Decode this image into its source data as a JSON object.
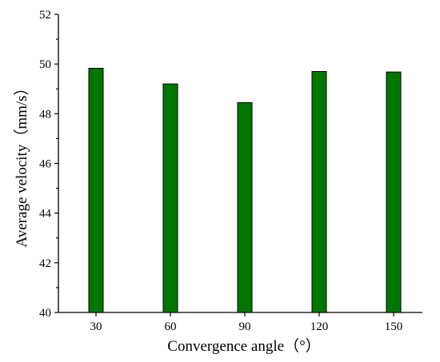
{
  "chart_data": {
    "type": "bar",
    "categories": [
      "30",
      "60",
      "90",
      "120",
      "150"
    ],
    "values": [
      49.83,
      49.2,
      48.45,
      49.7,
      49.68
    ],
    "xlabel": "Convergence angle（°）",
    "ylabel": "Average velocity（mm/s）",
    "ylim": [
      40,
      52
    ],
    "yticks": [
      "40",
      "42",
      "44",
      "46",
      "48",
      "50",
      "52"
    ],
    "bar_color": "#007700",
    "grid": false,
    "legend": "none"
  }
}
